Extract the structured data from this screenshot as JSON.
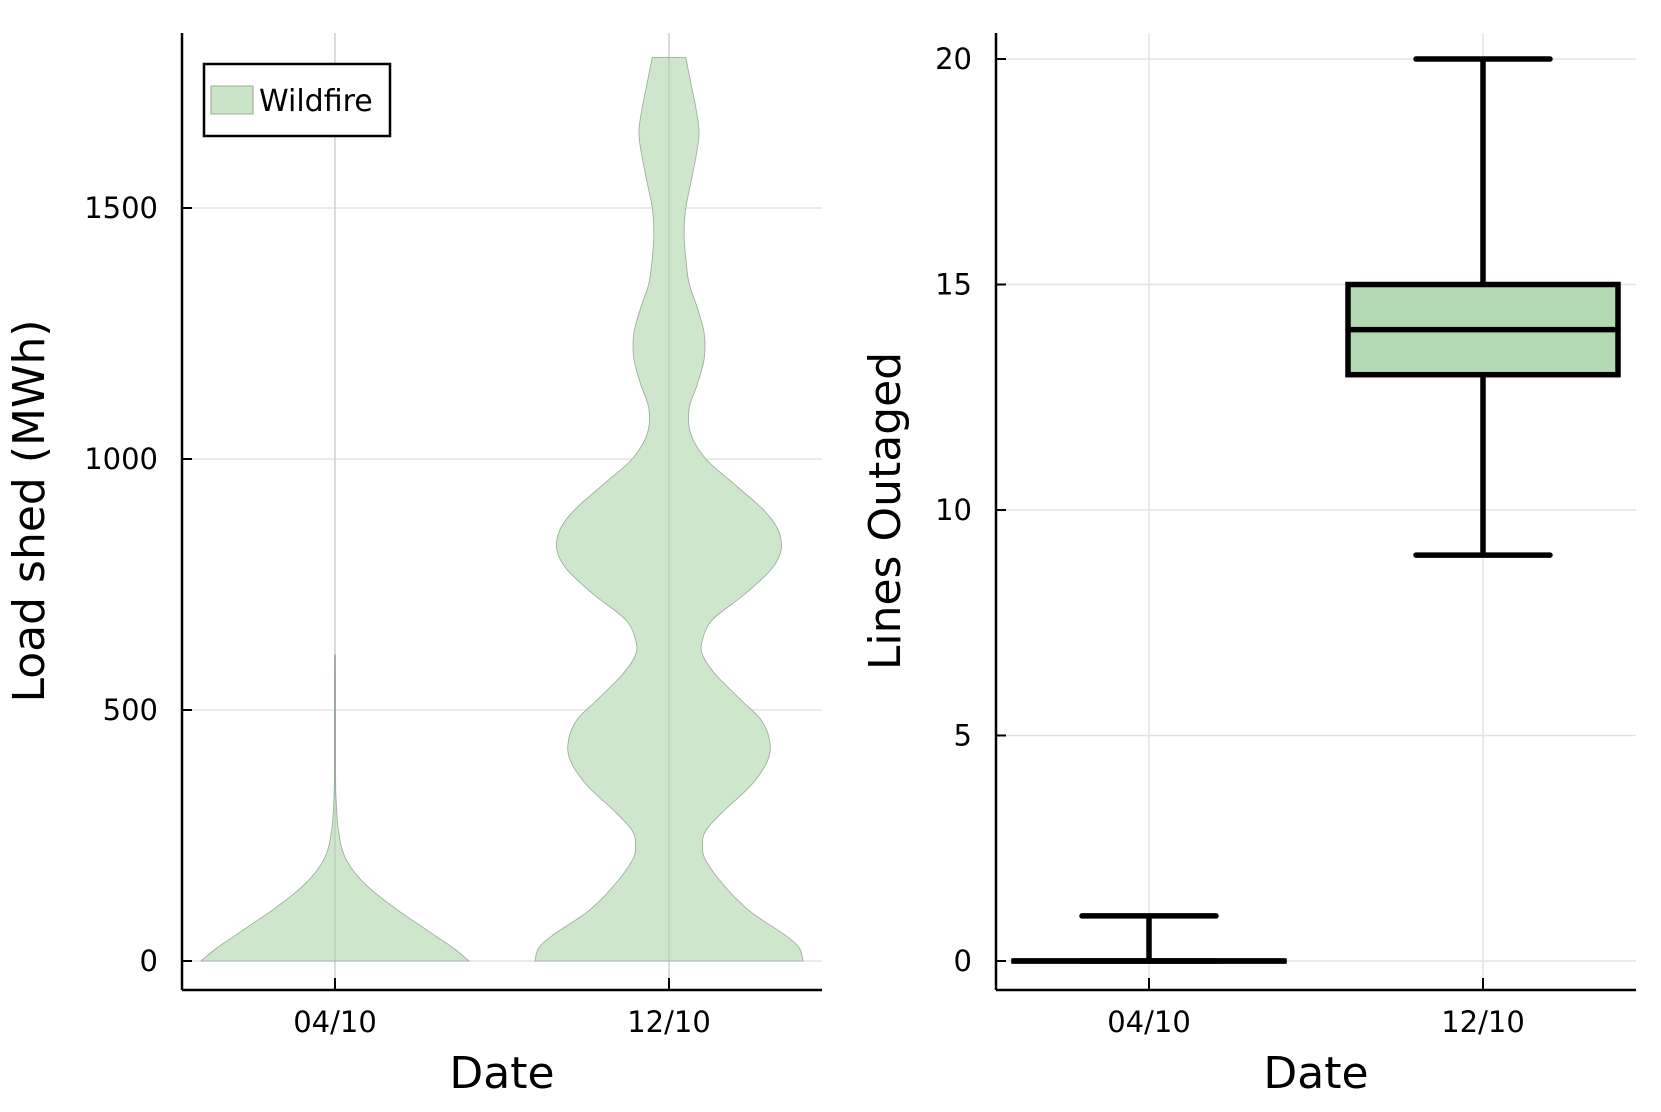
{
  "chart_data": [
    {
      "type": "violin",
      "xlabel": "Date",
      "ylabel": "Load shed (MWh)",
      "categories": [
        "04/10",
        "12/10"
      ],
      "y_ticks": [
        0,
        500,
        1000,
        1500
      ],
      "ylim": [
        -50,
        1850
      ],
      "grid": true,
      "legend": {
        "position": "top-left",
        "entries": [
          "Wildfire"
        ]
      },
      "series": [
        {
          "name": "Wildfire",
          "color": "#cbe5c9",
          "stroke": "#9aa89a",
          "distributions": [
            {
              "category": "04/10",
              "y_max": 610,
              "profile": [
                [
                  0,
                  0.8
                ],
                [
                  25,
                  0.71
                ],
                [
                  50,
                  0.6
                ],
                [
                  75,
                  0.49
                ],
                [
                  100,
                  0.38
                ],
                [
                  125,
                  0.28
                ],
                [
                  150,
                  0.19
                ],
                [
                  175,
                  0.12
                ],
                [
                  200,
                  0.07
                ],
                [
                  225,
                  0.04
                ],
                [
                  250,
                  0.025
                ],
                [
                  275,
                  0.015
                ],
                [
                  300,
                  0.01
                ],
                [
                  325,
                  0.006
                ],
                [
                  350,
                  0.004
                ],
                [
                  400,
                  0.003
                ],
                [
                  450,
                  0.003
                ],
                [
                  500,
                  0.003
                ],
                [
                  550,
                  0.003
                ],
                [
                  610,
                  0.002
                ]
              ]
            },
            {
              "category": "12/10",
              "y_max": 1800,
              "profile": [
                [
                  0,
                  0.8
                ],
                [
                  25,
                  0.78
                ],
                [
                  50,
                  0.7
                ],
                [
                  100,
                  0.48
                ],
                [
                  150,
                  0.33
                ],
                [
                  200,
                  0.22
                ],
                [
                  230,
                  0.2
                ],
                [
                  260,
                  0.22
                ],
                [
                  300,
                  0.33
                ],
                [
                  350,
                  0.49
                ],
                [
                  400,
                  0.59
                ],
                [
                  440,
                  0.6
                ],
                [
                  480,
                  0.55
                ],
                [
                  520,
                  0.43
                ],
                [
                  570,
                  0.28
                ],
                [
                  610,
                  0.2
                ],
                [
                  640,
                  0.2
                ],
                [
                  680,
                  0.26
                ],
                [
                  730,
                  0.45
                ],
                [
                  780,
                  0.61
                ],
                [
                  820,
                  0.67
                ],
                [
                  860,
                  0.65
                ],
                [
                  900,
                  0.56
                ],
                [
                  950,
                  0.39
                ],
                [
                  1000,
                  0.22
                ],
                [
                  1050,
                  0.13
                ],
                [
                  1100,
                  0.12
                ],
                [
                  1150,
                  0.17
                ],
                [
                  1200,
                  0.21
                ],
                [
                  1250,
                  0.21
                ],
                [
                  1300,
                  0.17
                ],
                [
                  1350,
                  0.12
                ],
                [
                  1400,
                  0.1
                ],
                [
                  1450,
                  0.09
                ],
                [
                  1500,
                  0.1
                ],
                [
                  1550,
                  0.13
                ],
                [
                  1600,
                  0.16
                ],
                [
                  1650,
                  0.18
                ],
                [
                  1700,
                  0.16
                ],
                [
                  1750,
                  0.13
                ],
                [
                  1800,
                  0.1
                ]
              ]
            }
          ]
        }
      ]
    },
    {
      "type": "box",
      "xlabel": "Date",
      "ylabel": "Lines Outaged",
      "categories": [
        "04/10",
        "12/10"
      ],
      "y_ticks": [
        0,
        5,
        10,
        15,
        20
      ],
      "ylim": [
        -0.6,
        20.6
      ],
      "grid": true,
      "box_color": "#b2d9b2",
      "boxes": [
        {
          "category": "04/10",
          "min": 0,
          "q1": 0,
          "median": 0,
          "q3": 0,
          "max": 1
        },
        {
          "category": "12/10",
          "min": 9,
          "q1": 13,
          "median": 14,
          "q3": 15,
          "max": 20
        }
      ]
    }
  ]
}
